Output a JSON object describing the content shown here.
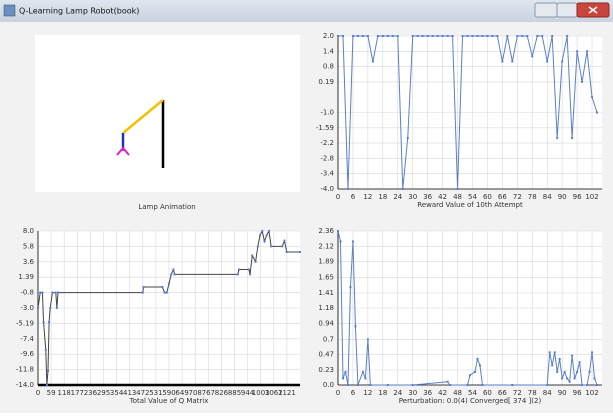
{
  "window_title": "Q-Learning Lamp Robot(book)",
  "lamp_caption": "Lamp Animation",
  "chart_data": [
    {
      "type": "line",
      "xlabel": "Reward Value of 10th Attempt",
      "color": "#5b7fce",
      "marker_color": "#5b7fce",
      "grid": true,
      "xlim": [
        0,
        106
      ],
      "ylim": [
        -4,
        2
      ],
      "xticks": [
        0,
        6,
        12,
        18,
        24,
        30,
        36,
        42,
        48,
        54,
        60,
        66,
        72,
        78,
        84,
        90,
        96,
        102
      ],
      "yticks": [
        {
          "value": -4,
          "label": "-4.0"
        },
        -3.4,
        -2.8,
        -2.2,
        {
          "value": -1.6,
          "label": "-1.59"
        },
        {
          "value": -1,
          "label": "-1.0"
        },
        {
          "value": 0.2,
          "label": "0.19"
        },
        0.8,
        1.4,
        {
          "value": 2,
          "label": "2.0"
        }
      ],
      "x": [
        0,
        2,
        4,
        6,
        8,
        10,
        12,
        14,
        16,
        18,
        20,
        22,
        24,
        26,
        28,
        30,
        32,
        34,
        36,
        38,
        40,
        42,
        44,
        46,
        48,
        50,
        52,
        54,
        56,
        58,
        60,
        62,
        64,
        66,
        68,
        70,
        72,
        74,
        76,
        78,
        80,
        82,
        84,
        86,
        88,
        90,
        92,
        94,
        96,
        98,
        100,
        102,
        104
      ],
      "values": [
        2,
        2,
        -4,
        2,
        2,
        2,
        2,
        1,
        2,
        2,
        2,
        2,
        2,
        -4,
        -2,
        2,
        2,
        2,
        2,
        2,
        2,
        2,
        2,
        2,
        -4,
        2,
        2,
        2,
        2,
        2,
        2,
        2,
        2,
        1,
        2,
        1,
        2,
        2,
        2,
        1.2,
        2,
        2,
        1,
        2,
        -2,
        1,
        2,
        -2,
        1.4,
        0.2,
        1.4,
        -0.4,
        -1
      ]
    },
    {
      "type": "line",
      "xlabel": "Total Value of Q Matrix",
      "color": "#444444",
      "marker_color": "#5b7fce",
      "grid": true,
      "xlim": [
        0,
        1180
      ],
      "ylim": [
        -14,
        8
      ],
      "xticks": [
        0,
        59,
        118,
        177,
        236,
        295,
        354,
        413,
        472,
        531,
        590,
        649,
        708,
        767,
        826,
        885,
        944,
        1003,
        1062,
        1121
      ],
      "yticks": [
        {
          "value": -14,
          "label": "-14.0"
        },
        -11.8,
        -9.6,
        -7.4,
        {
          "value": -5.2,
          "label": "-5.19"
        },
        {
          "value": -3,
          "label": "-3.0"
        },
        -0.8,
        {
          "value": 1.4,
          "label": "1.39"
        },
        3.6,
        5.8,
        {
          "value": 8,
          "label": "8.0"
        }
      ],
      "x": [
        0,
        10,
        20,
        25,
        35,
        40,
        45,
        50,
        55,
        65,
        80,
        85,
        90,
        472,
        475,
        560,
        570,
        580,
        590,
        600,
        610,
        615,
        900,
        905,
        950,
        955,
        965,
        980,
        990,
        1000,
        1010,
        1020,
        1030,
        1040,
        1050,
        1100,
        1110,
        1120,
        1180
      ],
      "values": [
        -3,
        -0.8,
        -0.8,
        -5,
        -9,
        -14,
        -12,
        -5,
        -3,
        -0.8,
        -0.8,
        -3,
        -0.8,
        -0.8,
        0,
        0,
        -0.8,
        -0.8,
        0.5,
        1.8,
        2.5,
        1.8,
        1.8,
        2.5,
        2.5,
        1.8,
        4.5,
        3.6,
        5.8,
        7.4,
        8,
        6.5,
        7.4,
        8,
        5.8,
        5.8,
        6.6,
        5,
        5
      ]
    },
    {
      "type": "line",
      "xlabel": "Perturbation: 0.0(4) Converged[ 374 ](2)",
      "color": "#5b7fce",
      "marker_color": "#5b7fce",
      "grid": true,
      "xlim": [
        0,
        106
      ],
      "ylim": [
        0,
        2.36
      ],
      "xticks": [
        0,
        6,
        12,
        18,
        24,
        30,
        36,
        42,
        48,
        54,
        60,
        66,
        72,
        78,
        84,
        90,
        96,
        102
      ],
      "yticks": [
        {
          "value": 0,
          "label": "0.0"
        },
        0.23,
        0.47,
        0.7,
        0.94,
        1.18,
        1.41,
        1.65,
        1.89,
        2.12,
        2.36
      ],
      "x": [
        0,
        1,
        2,
        3,
        4,
        5,
        6,
        7,
        8,
        10,
        11,
        12,
        13,
        20,
        30,
        44,
        45,
        52,
        53,
        55,
        56,
        57,
        58,
        70,
        84,
        85,
        86,
        87,
        88,
        89,
        90,
        91,
        92,
        93,
        94,
        95,
        96,
        97,
        98,
        100,
        101,
        102,
        103,
        104
      ],
      "values": [
        2.36,
        2.2,
        0.1,
        0.2,
        0,
        1.5,
        2.2,
        0.9,
        0,
        0.2,
        0.1,
        0.7,
        0,
        0,
        0,
        0.05,
        0,
        0,
        0.15,
        0.2,
        0.4,
        0.3,
        0,
        0,
        0,
        0.5,
        0.3,
        0.5,
        0.2,
        0.4,
        0.1,
        0.2,
        0.1,
        0.05,
        0.45,
        0.1,
        0.2,
        0.35,
        0,
        0,
        0.2,
        0.5,
        0.1,
        0
      ]
    }
  ]
}
